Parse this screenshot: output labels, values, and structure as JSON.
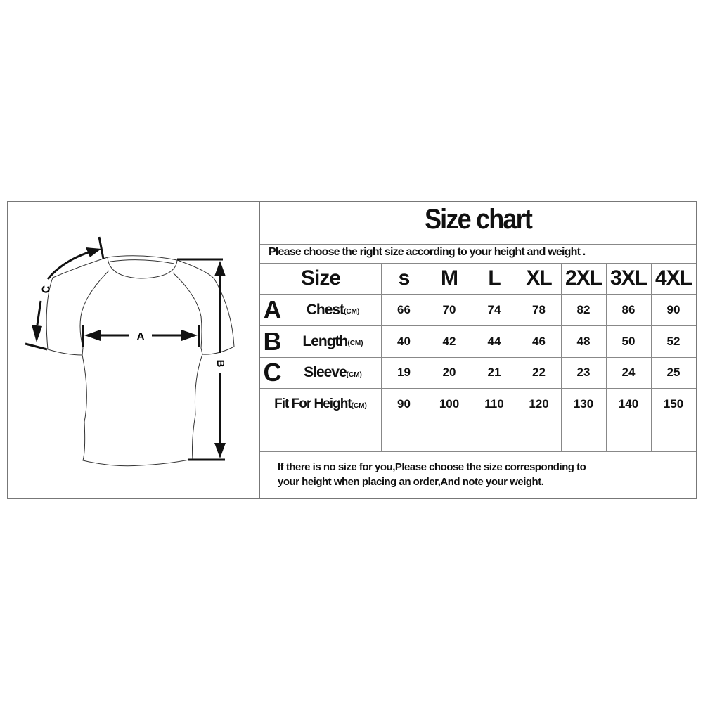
{
  "title": "Size chart",
  "subtitle": "Please choose the right size according to your height and weight .",
  "header": {
    "label": "Size",
    "sizes": [
      "s",
      "M",
      "L",
      "XL",
      "2XL",
      "3XL",
      "4XL"
    ]
  },
  "rows": [
    {
      "letter": "A",
      "label": "Chest",
      "unit": "(CM)",
      "values": [
        "66",
        "70",
        "74",
        "78",
        "82",
        "86",
        "90"
      ]
    },
    {
      "letter": "B",
      "label": "Length",
      "unit": "(CM)",
      "values": [
        "40",
        "42",
        "44",
        "46",
        "48",
        "50",
        "52"
      ]
    },
    {
      "letter": "C",
      "label": "Sleeve",
      "unit": "(CM)",
      "values": [
        "19",
        "20",
        "21",
        "22",
        "23",
        "24",
        "25"
      ]
    },
    {
      "letter": "",
      "label": "Fit For Height",
      "unit": "(CM)",
      "values": [
        "90",
        "100",
        "110",
        "120",
        "130",
        "140",
        "150"
      ]
    }
  ],
  "footer": {
    "line1": "If there is no size for you,Please choose the size corresponding to",
    "line2": "your height when placing an order,And note your weight."
  },
  "diagram": {
    "label_a": "A",
    "label_b": "B",
    "label_c": "C"
  }
}
